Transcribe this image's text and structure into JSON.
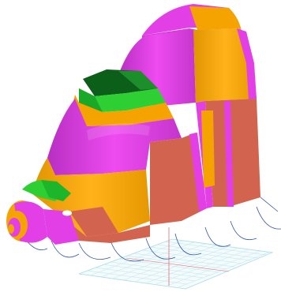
{
  "viewport": {
    "background": "#ffffff",
    "model": "fuselage-nose-section",
    "panel_colors": {
      "magenta": "#e23fe6",
      "orange": "#f5a300",
      "coral": "#d2644f",
      "green": "#2ecf33",
      "dark_green": "#0b5f19",
      "window_white": "#ffffff"
    },
    "grid_color": "#a9dbe6",
    "grid_axis_color": "#e07070",
    "frame_curve_color": "#3358a8"
  }
}
